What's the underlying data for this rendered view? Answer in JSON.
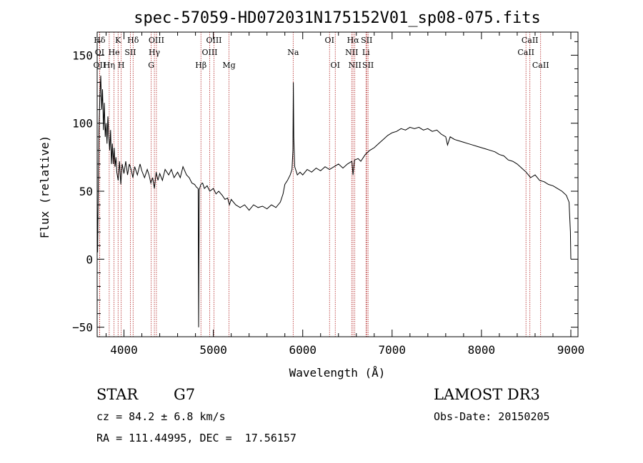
{
  "chart_data": {
    "type": "line",
    "title": "spec-57059-HD072031N175152V01_sp08-075.fits",
    "xlabel": "Wavelength (Å)",
    "ylabel": "Flux (relative)",
    "xlim": [
      3700,
      9080
    ],
    "ylim": [
      -57,
      167
    ],
    "xticks": [
      4000,
      5000,
      6000,
      7000,
      8000,
      9000
    ],
    "yticks": [
      -50,
      0,
      50,
      100,
      150
    ],
    "grid": false,
    "series": [
      {
        "points": [
          [
            3700,
            40
          ],
          [
            3705,
            5
          ],
          [
            3712,
            50
          ],
          [
            3720,
            95
          ],
          [
            3730,
            120
          ],
          [
            3740,
            135
          ],
          [
            3750,
            110
          ],
          [
            3760,
            125
          ],
          [
            3770,
            95
          ],
          [
            3780,
            115
          ],
          [
            3790,
            90
          ],
          [
            3800,
            100
          ],
          [
            3810,
            85
          ],
          [
            3820,
            105
          ],
          [
            3830,
            90
          ],
          [
            3840,
            80
          ],
          [
            3850,
            95
          ],
          [
            3860,
            70
          ],
          [
            3870,
            85
          ],
          [
            3880,
            70
          ],
          [
            3890,
            82
          ],
          [
            3900,
            68
          ],
          [
            3910,
            75
          ],
          [
            3920,
            64
          ],
          [
            3935,
            58
          ],
          [
            3950,
            72
          ],
          [
            3965,
            55
          ],
          [
            3980,
            70
          ],
          [
            4000,
            63
          ],
          [
            4020,
            72
          ],
          [
            4040,
            62
          ],
          [
            4060,
            70
          ],
          [
            4080,
            66
          ],
          [
            4100,
            60
          ],
          [
            4120,
            68
          ],
          [
            4150,
            62
          ],
          [
            4180,
            70
          ],
          [
            4200,
            65
          ],
          [
            4230,
            60
          ],
          [
            4260,
            66
          ],
          [
            4280,
            62
          ],
          [
            4300,
            56
          ],
          [
            4320,
            60
          ],
          [
            4340,
            52
          ],
          [
            4360,
            64
          ],
          [
            4380,
            58
          ],
          [
            4400,
            63
          ],
          [
            4430,
            58
          ],
          [
            4460,
            66
          ],
          [
            4500,
            62
          ],
          [
            4530,
            66
          ],
          [
            4560,
            60
          ],
          [
            4600,
            64
          ],
          [
            4630,
            60
          ],
          [
            4660,
            68
          ],
          [
            4700,
            62
          ],
          [
            4730,
            60
          ],
          [
            4760,
            56
          ],
          [
            4790,
            55
          ],
          [
            4810,
            53
          ],
          [
            4830,
            52
          ],
          [
            4835,
            -50
          ],
          [
            4842,
            51
          ],
          [
            4860,
            55
          ],
          [
            4880,
            56
          ],
          [
            4900,
            52
          ],
          [
            4930,
            54
          ],
          [
            4960,
            50
          ],
          [
            5000,
            52
          ],
          [
            5030,
            48
          ],
          [
            5060,
            50
          ],
          [
            5100,
            47
          ],
          [
            5130,
            44
          ],
          [
            5160,
            45
          ],
          [
            5180,
            40
          ],
          [
            5200,
            44
          ],
          [
            5250,
            40
          ],
          [
            5300,
            38
          ],
          [
            5350,
            40
          ],
          [
            5400,
            36
          ],
          [
            5450,
            40
          ],
          [
            5500,
            38
          ],
          [
            5550,
            39
          ],
          [
            5600,
            37
          ],
          [
            5650,
            40
          ],
          [
            5700,
            38
          ],
          [
            5750,
            42
          ],
          [
            5780,
            48
          ],
          [
            5800,
            55
          ],
          [
            5830,
            58
          ],
          [
            5860,
            62
          ],
          [
            5880,
            66
          ],
          [
            5890,
            80
          ],
          [
            5895,
            130
          ],
          [
            5900,
            90
          ],
          [
            5910,
            68
          ],
          [
            5940,
            62
          ],
          [
            5970,
            64
          ],
          [
            6000,
            62
          ],
          [
            6050,
            66
          ],
          [
            6100,
            64
          ],
          [
            6150,
            67
          ],
          [
            6200,
            65
          ],
          [
            6250,
            68
          ],
          [
            6300,
            66
          ],
          [
            6350,
            68
          ],
          [
            6400,
            70
          ],
          [
            6450,
            67
          ],
          [
            6500,
            70
          ],
          [
            6550,
            72
          ],
          [
            6563,
            62
          ],
          [
            6580,
            73
          ],
          [
            6620,
            74
          ],
          [
            6650,
            72
          ],
          [
            6700,
            77
          ],
          [
            6750,
            80
          ],
          [
            6800,
            82
          ],
          [
            6850,
            85
          ],
          [
            6900,
            88
          ],
          [
            6950,
            91
          ],
          [
            7000,
            93
          ],
          [
            7050,
            94
          ],
          [
            7100,
            96
          ],
          [
            7150,
            95
          ],
          [
            7200,
            97
          ],
          [
            7250,
            96
          ],
          [
            7300,
            97
          ],
          [
            7350,
            95
          ],
          [
            7400,
            96
          ],
          [
            7450,
            94
          ],
          [
            7500,
            95
          ],
          [
            7550,
            92
          ],
          [
            7600,
            90
          ],
          [
            7620,
            84
          ],
          [
            7650,
            90
          ],
          [
            7700,
            88
          ],
          [
            7750,
            87
          ],
          [
            7800,
            86
          ],
          [
            7850,
            85
          ],
          [
            7900,
            84
          ],
          [
            7950,
            83
          ],
          [
            8000,
            82
          ],
          [
            8050,
            81
          ],
          [
            8100,
            80
          ],
          [
            8150,
            79
          ],
          [
            8200,
            77
          ],
          [
            8250,
            76
          ],
          [
            8300,
            73
          ],
          [
            8350,
            72
          ],
          [
            8400,
            70
          ],
          [
            8450,
            67
          ],
          [
            8500,
            64
          ],
          [
            8550,
            60
          ],
          [
            8600,
            62
          ],
          [
            8650,
            58
          ],
          [
            8700,
            57
          ],
          [
            8750,
            55
          ],
          [
            8800,
            54
          ],
          [
            8850,
            52
          ],
          [
            8900,
            50
          ],
          [
            8950,
            47
          ],
          [
            8980,
            42
          ],
          [
            8995,
            20
          ],
          [
            9000,
            0
          ]
        ]
      }
    ],
    "lines": [
      {
        "label": "Hδ",
        "x": 3727,
        "row": 0
      },
      {
        "label": "OI",
        "x": 3727,
        "row": 1
      },
      {
        "label": "OII",
        "x": 3727,
        "row": 2
      },
      {
        "label": "K",
        "x": 3934,
        "row": 0
      },
      {
        "label": "He",
        "x": 3889,
        "row": 1
      },
      {
        "label": "Hη",
        "x": 3835,
        "row": 2
      },
      {
        "label": "Hδ",
        "x": 4102,
        "row": 0
      },
      {
        "label": "SII",
        "x": 4072,
        "row": 1
      },
      {
        "label": "H",
        "x": 3969,
        "row": 2
      },
      {
        "label": "OIII",
        "x": 4363,
        "row": 0
      },
      {
        "label": "Hγ",
        "x": 4340,
        "row": 1
      },
      {
        "label": "G",
        "x": 4305,
        "row": 2
      },
      {
        "label": "OIII",
        "x": 5007,
        "row": 0
      },
      {
        "label": "OIII",
        "x": 4959,
        "row": 1
      },
      {
        "label": "Hβ",
        "x": 4861,
        "row": 2
      },
      {
        "label": "Mg",
        "x": 5175,
        "row": 2
      },
      {
        "label": "Na",
        "x": 5893,
        "row": 1
      },
      {
        "label": "OI",
        "x": 6300,
        "row": 0
      },
      {
        "label": "OI",
        "x": 6364,
        "row": 2
      },
      {
        "label": "Hα",
        "x": 6563,
        "row": 0
      },
      {
        "label": "SII",
        "x": 6716,
        "row": 0
      },
      {
        "label": "NII",
        "x": 6548,
        "row": 1
      },
      {
        "label": "Li",
        "x": 6708,
        "row": 1
      },
      {
        "label": "NII",
        "x": 6583,
        "row": 2
      },
      {
        "label": "SII",
        "x": 6731,
        "row": 2
      },
      {
        "label": "CaII",
        "x": 8542,
        "row": 0
      },
      {
        "label": "CaII",
        "x": 8498,
        "row": 1
      },
      {
        "label": "CaII",
        "x": 8662,
        "row": 2
      }
    ]
  },
  "info": {
    "object_class": "STAR",
    "subclass": "G7",
    "survey": "LAMOST DR3",
    "cz": "cz = 84.2 ± 6.8 km/s",
    "obs_date": "Obs-Date: 20150205",
    "coords": "RA = 111.44995, DEC =  17.56157"
  },
  "colors": {
    "spectrum": "#000000",
    "marker_lines": "#b22222",
    "axes": "#000000"
  }
}
